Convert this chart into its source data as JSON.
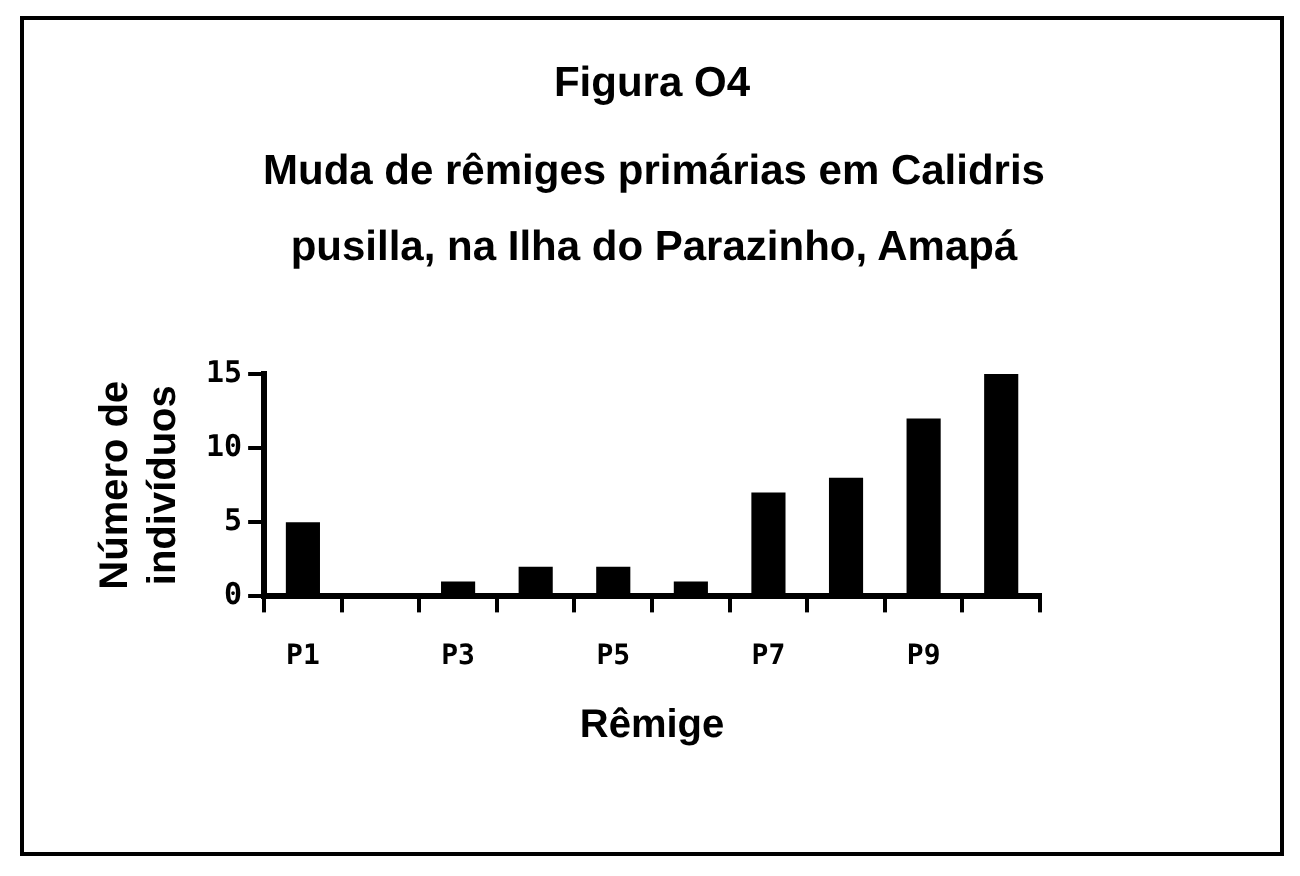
{
  "chart_data": {
    "type": "bar",
    "title": "Figura O4",
    "subtitle": "Muda de rêmiges primárias em Calidris pusilla, na Ilha do Parazinho, Amapá",
    "xlabel": "Rêmige",
    "ylabel": "Número de indivíduos",
    "categories": [
      "P1",
      null,
      "P3",
      null,
      "P5",
      null,
      "P7",
      null,
      "P9",
      null
    ],
    "values": [
      5,
      0,
      1,
      2,
      2,
      1,
      7,
      8,
      12,
      15
    ],
    "color": "#000000",
    "ylim": [
      0,
      15
    ],
    "yticks": [
      0,
      5,
      10,
      15
    ]
  }
}
